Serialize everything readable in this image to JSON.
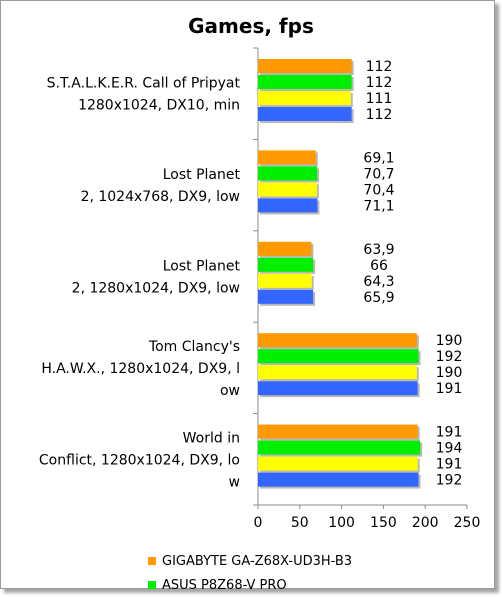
{
  "chart_data": {
    "type": "bar",
    "orientation": "horizontal",
    "title": "Games, fps",
    "xlabel": "",
    "ylabel": "",
    "xlim": [
      0,
      250
    ],
    "xticks": [
      "0",
      "50",
      "100",
      "150",
      "200",
      "250"
    ],
    "grid": false,
    "legend_position": "bottom",
    "categories": [
      {
        "lines": [
          "S.T.A.L.K.E.R. Call of Pripyat",
          "1280x1024, DX10, min"
        ]
      },
      {
        "lines": [
          "Lost Planet",
          "2, 1024x768, DX9, low"
        ]
      },
      {
        "lines": [
          "Lost Planet",
          "2, 1280x1024, DX9, low"
        ]
      },
      {
        "lines": [
          "Tom Clancy's",
          "H.A.W.X., 1280x1024, DX9, l",
          "ow"
        ]
      },
      {
        "lines": [
          "World in",
          "Conflict, 1280x1024, DX9, lo",
          "w"
        ]
      }
    ],
    "series": [
      {
        "name": "GIGABYTE GA-Z68X-UD3H-B3",
        "color": "#ff9900",
        "values": [
          112,
          69.1,
          63.9,
          190,
          191
        ],
        "labels": [
          "112",
          "69,1",
          "63,9",
          "190",
          "191"
        ]
      },
      {
        "name": "ASUS P8Z68-V PRO",
        "color": "#00ee00",
        "values": [
          112,
          70.7,
          66,
          192,
          194
        ],
        "labels": [
          "112",
          "70,7",
          "66",
          "192",
          "194"
        ]
      },
      {
        "name": "",
        "color": "#ffff00",
        "values": [
          111,
          70.4,
          64.3,
          190,
          191
        ],
        "labels": [
          "111",
          "70,4",
          "64,3",
          "190",
          "191"
        ]
      },
      {
        "name": "",
        "color": "#3366ff",
        "values": [
          112,
          71.1,
          65.9,
          191,
          192
        ],
        "labels": [
          "112",
          "71,1",
          "65,9",
          "191",
          "192"
        ]
      }
    ]
  }
}
